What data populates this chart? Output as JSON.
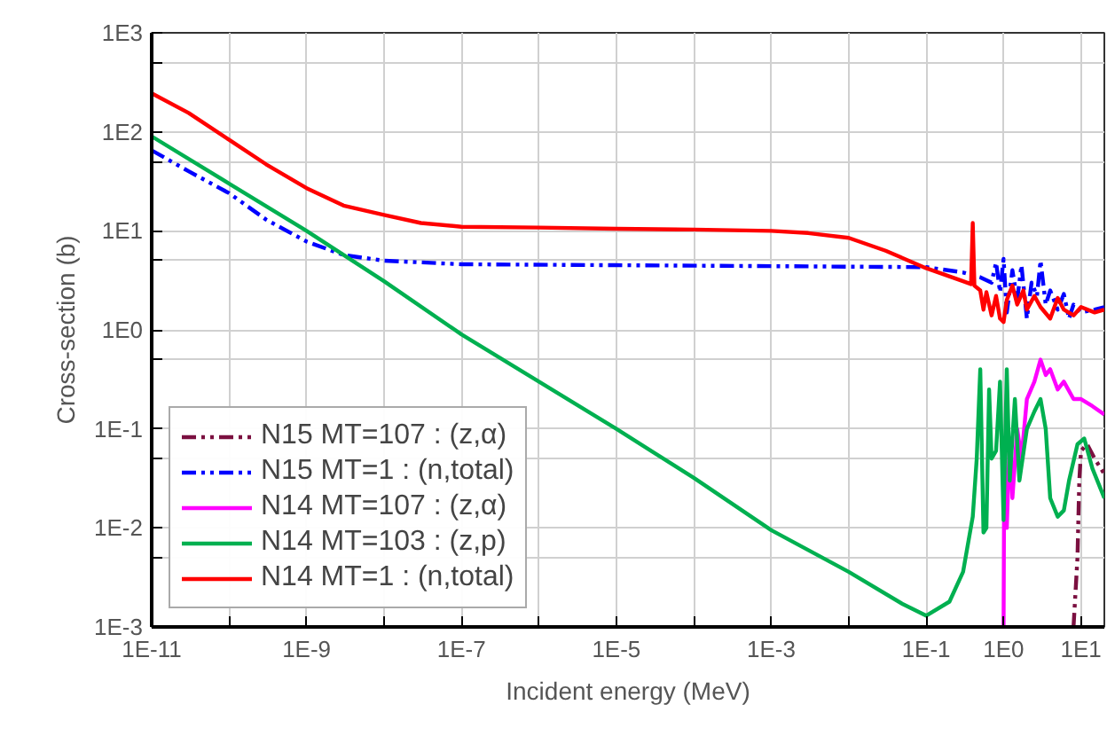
{
  "chart_data": {
    "type": "line",
    "xlabel": "Incident energy (MeV)",
    "ylabel": "Cross-section (b)",
    "log": "xy",
    "grid": true,
    "legend": "bottom left",
    "xlim": [
      1e-11,
      20
    ],
    "ylim": [
      0.001,
      1000
    ],
    "xticks": [
      {
        "value": 1e-11,
        "label": "1E-11"
      },
      {
        "value": 1e-10,
        "label": null
      },
      {
        "value": 1e-09,
        "label": "1E-9"
      },
      {
        "value": 1e-08,
        "label": null
      },
      {
        "value": 1e-07,
        "label": "1E-7"
      },
      {
        "value": 1e-06,
        "label": null
      },
      {
        "value": 1e-05,
        "label": "1E-5"
      },
      {
        "value": 0.0001,
        "label": null
      },
      {
        "value": 0.001,
        "label": "1E-3"
      },
      {
        "value": 0.01,
        "label": null
      },
      {
        "value": 0.1,
        "label": "1E-1"
      },
      {
        "value": 1,
        "label": "1E0"
      },
      {
        "value": 10,
        "label": "1E1"
      }
    ],
    "yticks": [
      {
        "value": 0.001,
        "label": "1E-3"
      },
      {
        "value": 0.005,
        "label": null
      },
      {
        "value": 0.01,
        "label": "1E-2"
      },
      {
        "value": 0.05,
        "label": null
      },
      {
        "value": 0.1,
        "label": "1E-1"
      },
      {
        "value": 0.5,
        "label": null
      },
      {
        "value": 1,
        "label": "1E0"
      },
      {
        "value": 5,
        "label": null
      },
      {
        "value": 10,
        "label": "1E1"
      },
      {
        "value": 50,
        "label": null
      },
      {
        "value": 100,
        "label": "1E2"
      },
      {
        "value": 500,
        "label": null
      },
      {
        "value": 1000,
        "label": "1E3"
      }
    ],
    "series": [
      {
        "name": "N15 MT=107 : (z,α)",
        "color": "#7b1040",
        "line_style": "dashdot",
        "x": [
          8,
          9,
          9.5,
          10,
          12,
          15,
          20
        ],
        "values": [
          0.001,
          0.005,
          0.03,
          0.06,
          0.07,
          0.05,
          0.035
        ]
      },
      {
        "name": "N15 MT=1 : (n,total)",
        "color": "#0000ff",
        "line_style": "dashdot",
        "x": [
          1e-11,
          3e-11,
          1e-10,
          3e-10,
          1e-09,
          3e-09,
          1e-08,
          1e-07,
          1e-05,
          0.001,
          0.1,
          0.3,
          0.5,
          0.7,
          0.8,
          0.9,
          1,
          1.1,
          1.3,
          1.5,
          1.7,
          2,
          2.3,
          2.7,
          3,
          3.5,
          4,
          5,
          6,
          7,
          8,
          10,
          15,
          20
        ],
        "values": [
          65,
          40,
          24,
          13,
          7.8,
          5.7,
          5.0,
          4.6,
          4.5,
          4.4,
          4.3,
          3.8,
          3.4,
          3.0,
          4.8,
          2.4,
          5.2,
          1.5,
          4.0,
          2.0,
          4.5,
          1.3,
          3.0,
          2.2,
          5.0,
          1.8,
          2.5,
          1.6,
          2.3,
          1.3,
          1.8,
          1.5,
          1.6,
          1.7
        ]
      },
      {
        "name": "N14 MT=107 : (z,α)",
        "color": "#ff00ff",
        "line_style": "solid",
        "x": [
          1.0,
          1.02,
          1.1,
          1.2,
          1.3,
          1.5,
          1.7,
          2,
          2.5,
          3,
          3.5,
          4,
          5,
          6,
          8,
          10,
          14,
          20
        ],
        "values": [
          0.001,
          0.05,
          0.01,
          0.08,
          0.02,
          0.1,
          0.05,
          0.2,
          0.3,
          0.5,
          0.35,
          0.4,
          0.25,
          0.3,
          0.2,
          0.2,
          0.17,
          0.14
        ]
      },
      {
        "name": "N14 MT=103 : (z,p)",
        "color": "#00b050",
        "line_style": "solid",
        "x": [
          1e-11,
          1e-10,
          1e-09,
          1e-08,
          1e-07,
          1e-06,
          1e-05,
          0.0001,
          0.001,
          0.01,
          0.05,
          0.1,
          0.2,
          0.3,
          0.4,
          0.45,
          0.5,
          0.55,
          0.6,
          0.65,
          0.7,
          0.8,
          0.9,
          1.0,
          1.1,
          1.2,
          1.4,
          1.6,
          2,
          2.5,
          3,
          3.5,
          4,
          5,
          6,
          7,
          9,
          11,
          14,
          20
        ],
        "values": [
          90,
          30,
          10,
          3.1,
          0.9,
          0.3,
          0.1,
          0.032,
          0.0095,
          0.0036,
          0.0017,
          0.0013,
          0.0018,
          0.0036,
          0.013,
          0.05,
          0.4,
          0.009,
          0.01,
          0.25,
          0.05,
          0.06,
          0.3,
          0.012,
          0.4,
          0.03,
          0.2,
          0.03,
          0.1,
          0.15,
          0.2,
          0.1,
          0.02,
          0.013,
          0.015,
          0.03,
          0.07,
          0.08,
          0.04,
          0.02
        ]
      },
      {
        "name": "N14 MT=1 : (n,total)",
        "color": "#ff0000",
        "line_style": "solid",
        "x": [
          1e-11,
          3e-11,
          1e-10,
          3e-10,
          1e-09,
          3e-09,
          1e-08,
          3e-08,
          1e-07,
          1e-06,
          1e-05,
          0.0001,
          0.001,
          0.003,
          0.01,
          0.03,
          0.1,
          0.3,
          0.38,
          0.4,
          0.42,
          0.5,
          0.55,
          0.6,
          0.7,
          0.8,
          0.9,
          1.0,
          1.1,
          1.3,
          1.5,
          1.8,
          2,
          2.5,
          3,
          4,
          5,
          6,
          8,
          10,
          15,
          20
        ],
        "values": [
          245,
          155,
          83,
          47,
          27,
          18,
          14.5,
          12,
          11,
          10.8,
          10.5,
          10.3,
          10,
          9.5,
          8.5,
          6.3,
          4.2,
          3.1,
          2.9,
          12,
          2.8,
          2.5,
          1.6,
          2.4,
          1.4,
          2.2,
          1.3,
          1.2,
          2.0,
          2.8,
          1.8,
          2.5,
          1.6,
          2.2,
          1.7,
          1.3,
          2.1,
          1.6,
          1.4,
          1.7,
          1.5,
          1.6
        ]
      }
    ]
  }
}
